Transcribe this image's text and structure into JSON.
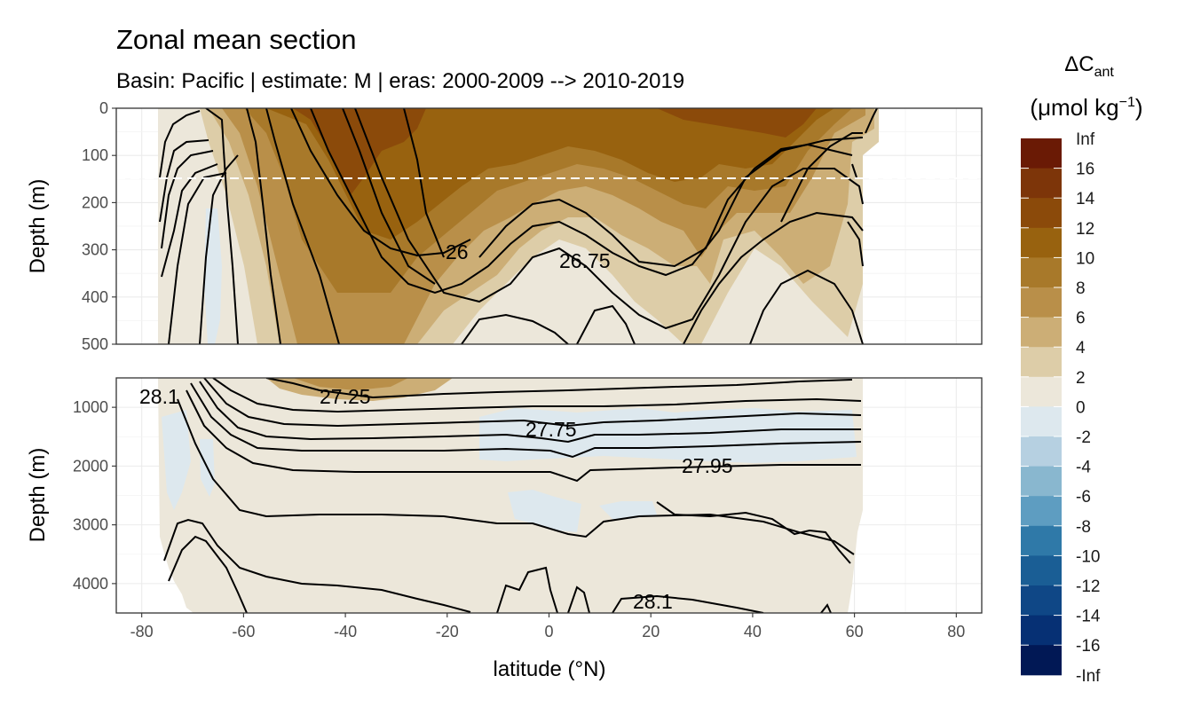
{
  "chart_data": {
    "type": "contour",
    "title": "Zonal mean section",
    "subtitle": "Basin: Pacific | estimate: M  | eras: 2000-2009 --> 2010-2019",
    "xlabel": "latitude (°N)",
    "ylabel": "Depth (m)",
    "x_ticks": [
      "-80",
      "-60",
      "-40",
      "-20",
      "0",
      "20",
      "40",
      "60",
      "80"
    ],
    "xlim": [
      -85,
      85
    ],
    "panels": [
      {
        "name": "upper",
        "ylim": [
          500,
          0
        ],
        "y_ticks": [
          "0",
          "100",
          "200",
          "300",
          "400",
          "500"
        ],
        "reference_depth": 150,
        "contour_labels": [
          "26",
          "26.75"
        ]
      },
      {
        "name": "lower",
        "ylim": [
          4500,
          500
        ],
        "y_ticks": [
          "1000",
          "2000",
          "3000",
          "4000"
        ],
        "contour_labels": [
          "28.1",
          "27.25",
          "27.75",
          "27.95",
          "28.1"
        ]
      }
    ],
    "legend": {
      "title": "ΔC",
      "title_subscript": "ant",
      "unit": "(μmol kg",
      "unit_superscript": "−1",
      "unit_close": ")",
      "labels": [
        "Inf",
        "16",
        "14",
        "12",
        "10",
        "8",
        "6",
        "4",
        "2",
        "0",
        "-2",
        "-4",
        "-6",
        "-8",
        "-10",
        "-12",
        "-14",
        "-16",
        "-Inf"
      ],
      "colors": [
        "#6a1a05",
        "#7d3509",
        "#8b4a0a",
        "#98620f",
        "#a8792a",
        "#b98f49",
        "#ccae76",
        "#ddcda8",
        "#ece7da",
        "#dde8ee",
        "#b6d0e1",
        "#89b7cf",
        "#5e9dc1",
        "#2f79a8",
        "#1a5e95",
        "#0f4786",
        "#063074",
        "#011855"
      ]
    },
    "grid": true
  }
}
